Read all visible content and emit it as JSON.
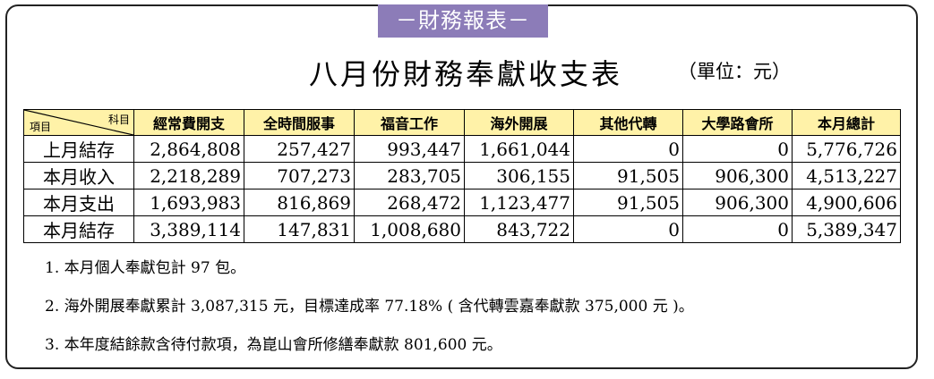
{
  "banner": "－財務報表－",
  "title": "八月份財務奉獻收支表",
  "unit": "（單位：元）",
  "table": {
    "corner_top": "科目",
    "corner_bottom": "項目",
    "columns": [
      "經常費開支",
      "全時間服事",
      "福音工作",
      "海外開展",
      "其他代轉",
      "大學路會所",
      "本月總計"
    ],
    "rows": [
      {
        "label": "上月結存",
        "values": [
          "2,864,808",
          "257,427",
          "993,447",
          "1,661,044",
          "0",
          "0",
          "5,776,726"
        ]
      },
      {
        "label": "本月收入",
        "values": [
          "2,218,289",
          "707,273",
          "283,705",
          "306,155",
          "91,505",
          "906,300",
          "4,513,227"
        ]
      },
      {
        "label": "本月支出",
        "values": [
          "1,693,983",
          "816,869",
          "268,472",
          "1,123,477",
          "91,505",
          "906,300",
          "4,900,606"
        ]
      },
      {
        "label": "本月結存",
        "values": [
          "3,389,114",
          "147,831",
          "1,008,680",
          "843,722",
          "0",
          "0",
          "5,389,347"
        ]
      }
    ]
  },
  "notes": [
    "1. 本月個人奉獻包計 97 包。",
    "2. 海外開展奉獻累計 3,087,315 元，目標達成率 77.18% ( 含代轉雲嘉奉獻款 375,000 元 )。",
    "3. 本年度結餘款含待付款項，為崑山會所修繕奉獻款 801,600 元。"
  ]
}
